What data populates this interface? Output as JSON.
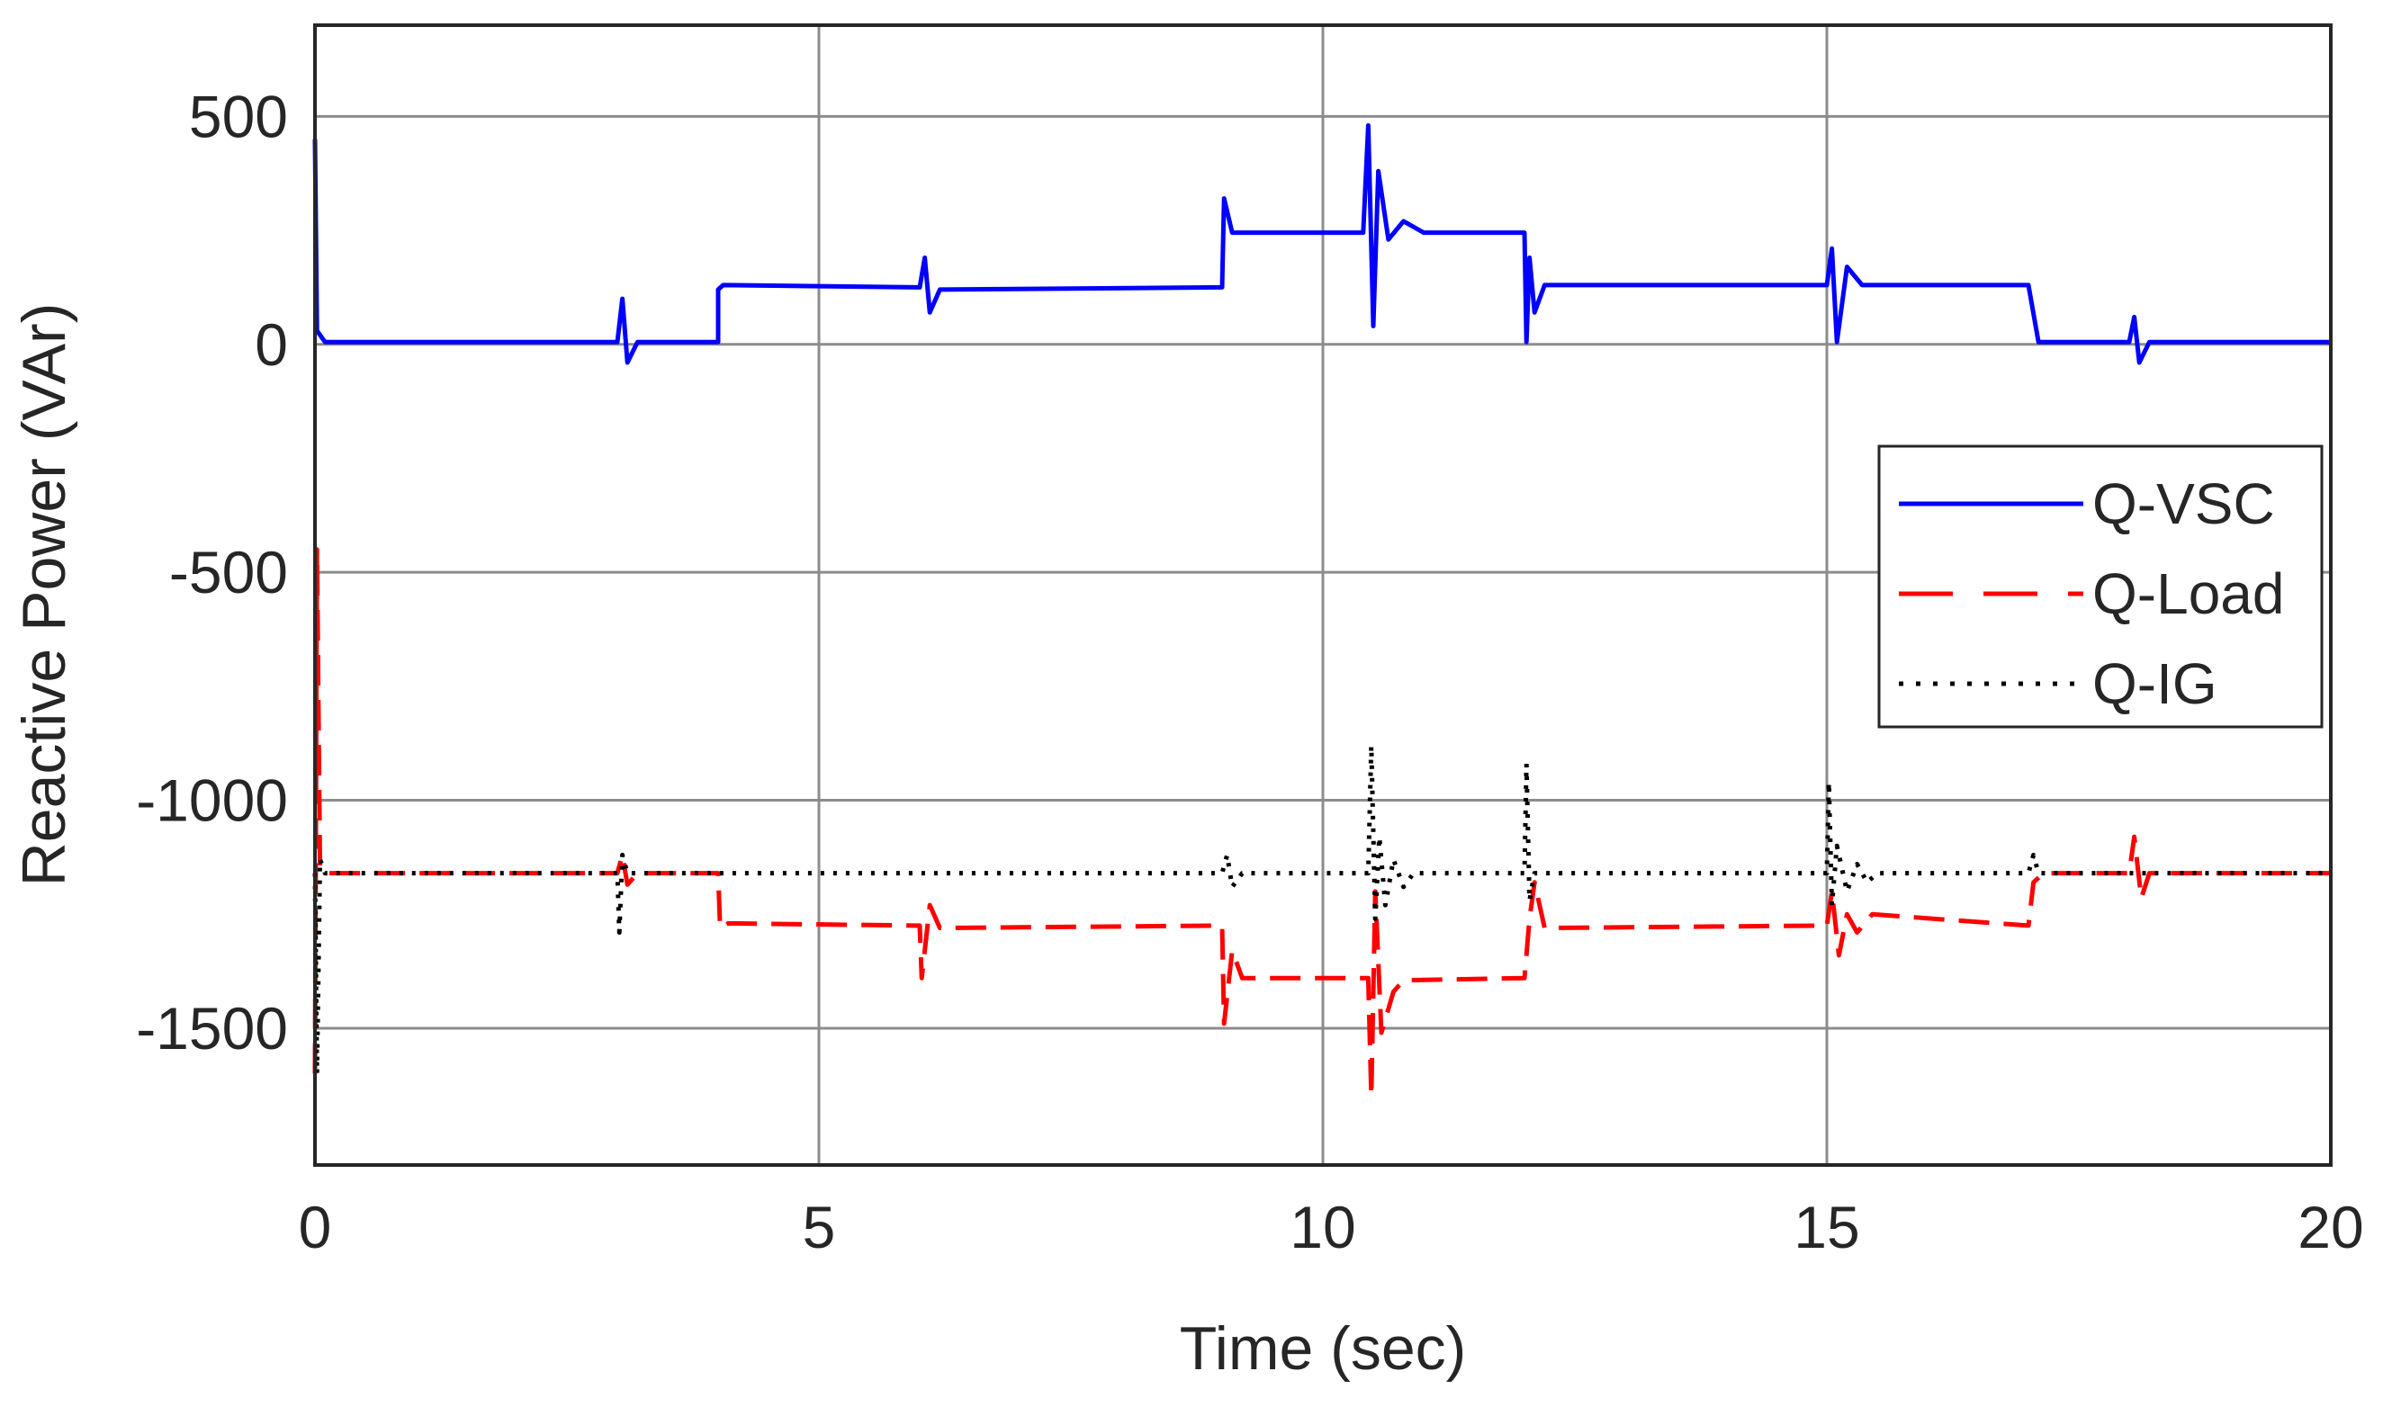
{
  "chart_data": {
    "type": "line",
    "xlabel": "Time (sec)",
    "ylabel": "Reactive Power (VAr)",
    "xlim": [
      0,
      20
    ],
    "ylim": [
      -1800,
      700
    ],
    "xticks": [
      0,
      5,
      10,
      15,
      20
    ],
    "yticks": [
      500,
      0,
      -500,
      -1000,
      -1500
    ],
    "xtick_labels": [
      "0",
      "5",
      "10",
      "15",
      "20"
    ],
    "ytick_labels": [
      "500",
      "0",
      "-500",
      "-1000",
      "-1500"
    ],
    "grid": true,
    "legend_position": "right",
    "series": [
      {
        "name": "Q-VSC",
        "color": "#0000ff",
        "style": "solid",
        "points": [
          [
            0,
            450
          ],
          [
            0.02,
            30
          ],
          [
            0.1,
            5
          ],
          [
            3,
            5
          ],
          [
            3.05,
            100
          ],
          [
            3.1,
            -40
          ],
          [
            3.2,
            5
          ],
          [
            4,
            5
          ],
          [
            4,
            120
          ],
          [
            4.05,
            130
          ],
          [
            6,
            125
          ],
          [
            6.05,
            190
          ],
          [
            6.1,
            70
          ],
          [
            6.2,
            120
          ],
          [
            9,
            125
          ],
          [
            9.02,
            320
          ],
          [
            9.1,
            245
          ],
          [
            9.3,
            245
          ],
          [
            10.4,
            245
          ],
          [
            10.45,
            480
          ],
          [
            10.5,
            40
          ],
          [
            10.55,
            380
          ],
          [
            10.65,
            230
          ],
          [
            10.8,
            270
          ],
          [
            11,
            245
          ],
          [
            12,
            245
          ],
          [
            12.02,
            5
          ],
          [
            12.05,
            190
          ],
          [
            12.1,
            70
          ],
          [
            12.2,
            130
          ],
          [
            15,
            130
          ],
          [
            15.05,
            210
          ],
          [
            15.1,
            5
          ],
          [
            15.2,
            170
          ],
          [
            15.35,
            130
          ],
          [
            17,
            130
          ],
          [
            17.1,
            5
          ],
          [
            18,
            5
          ],
          [
            18.05,
            60
          ],
          [
            18.1,
            -40
          ],
          [
            18.2,
            5
          ],
          [
            20,
            5
          ]
        ]
      },
      {
        "name": "Q-Load",
        "color": "#ff0000",
        "style": "dashed",
        "points": [
          [
            0,
            -1600
          ],
          [
            0.02,
            -450
          ],
          [
            0.05,
            -1150
          ],
          [
            0.1,
            -1160
          ],
          [
            3,
            -1160
          ],
          [
            3.05,
            -1120
          ],
          [
            3.1,
            -1185
          ],
          [
            3.2,
            -1160
          ],
          [
            4,
            -1160
          ],
          [
            4.02,
            -1280
          ],
          [
            4.1,
            -1270
          ],
          [
            6,
            -1275
          ],
          [
            6.02,
            -1390
          ],
          [
            6.1,
            -1230
          ],
          [
            6.2,
            -1280
          ],
          [
            9,
            -1275
          ],
          [
            9.02,
            -1490
          ],
          [
            9.1,
            -1330
          ],
          [
            9.2,
            -1390
          ],
          [
            10.45,
            -1390
          ],
          [
            10.48,
            -1650
          ],
          [
            10.52,
            -1200
          ],
          [
            10.58,
            -1510
          ],
          [
            10.7,
            -1420
          ],
          [
            10.8,
            -1395
          ],
          [
            12,
            -1390
          ],
          [
            12.05,
            -1260
          ],
          [
            12.1,
            -1180
          ],
          [
            12.2,
            -1280
          ],
          [
            15,
            -1275
          ],
          [
            15.05,
            -1200
          ],
          [
            15.12,
            -1340
          ],
          [
            15.2,
            -1250
          ],
          [
            15.3,
            -1290
          ],
          [
            15.45,
            -1250
          ],
          [
            17,
            -1275
          ],
          [
            17.05,
            -1180
          ],
          [
            17.15,
            -1160
          ],
          [
            18,
            -1160
          ],
          [
            18.05,
            -1080
          ],
          [
            18.12,
            -1215
          ],
          [
            18.2,
            -1160
          ],
          [
            20,
            -1160
          ]
        ]
      },
      {
        "name": "Q-IG",
        "color": "#000000",
        "style": "dotted",
        "points": [
          [
            0,
            -1160
          ],
          [
            0.02,
            -1600
          ],
          [
            0.05,
            -1130
          ],
          [
            0.1,
            -1160
          ],
          [
            3,
            -1160
          ],
          [
            3.02,
            -1290
          ],
          [
            3.05,
            -1120
          ],
          [
            3.1,
            -1160
          ],
          [
            9,
            -1160
          ],
          [
            9.05,
            -1120
          ],
          [
            9.1,
            -1190
          ],
          [
            9.2,
            -1160
          ],
          [
            10.45,
            -1160
          ],
          [
            10.48,
            -880
          ],
          [
            10.52,
            -1260
          ],
          [
            10.56,
            -1080
          ],
          [
            10.62,
            -1230
          ],
          [
            10.7,
            -1130
          ],
          [
            10.8,
            -1190
          ],
          [
            10.9,
            -1160
          ],
          [
            12,
            -1160
          ],
          [
            12.02,
            -920
          ],
          [
            12.05,
            -1220
          ],
          [
            12.1,
            -1160
          ],
          [
            15,
            -1160
          ],
          [
            15.02,
            -960
          ],
          [
            15.05,
            -1230
          ],
          [
            15.1,
            -1100
          ],
          [
            15.2,
            -1200
          ],
          [
            15.3,
            -1140
          ],
          [
            15.4,
            -1180
          ],
          [
            15.5,
            -1160
          ],
          [
            17,
            -1160
          ],
          [
            17.05,
            -1120
          ],
          [
            17.1,
            -1160
          ],
          [
            20,
            -1160
          ]
        ]
      }
    ]
  }
}
